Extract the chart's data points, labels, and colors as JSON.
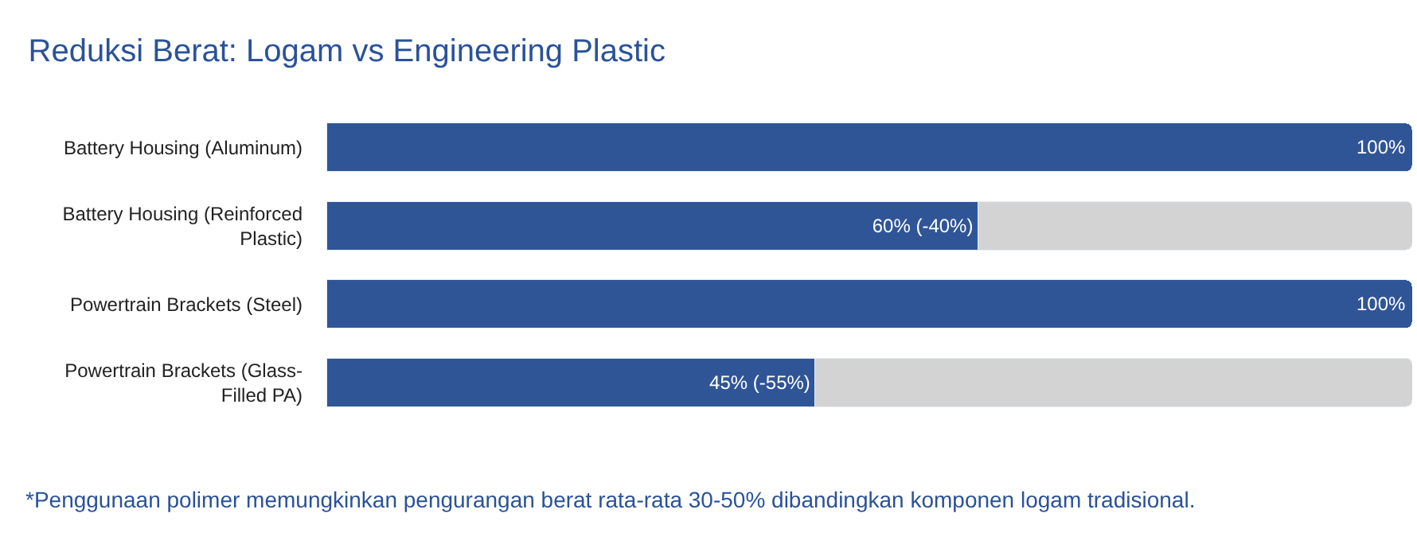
{
  "chart_data": {
    "type": "bar",
    "orientation": "horizontal",
    "stacked": true,
    "title": "Reduksi Berat: Logam vs Engineering Plastic",
    "categories": [
      "Battery Housing (Aluminum)",
      "Battery Housing (Reinforced Plastic)",
      "Powertrain Brackets (Steel)",
      "Powertrain Brackets (Glass-Filled PA)"
    ],
    "series": [
      {
        "color": "#2f5597",
        "values": [
          100,
          60,
          100,
          45
        ],
        "value_labels": [
          "100%",
          "60% (-40%)",
          "100%",
          "45% (-55%)"
        ]
      },
      {
        "color": "#d3d3d3",
        "values": [
          null,
          40,
          null,
          55
        ]
      }
    ],
    "xlim": [
      0,
      100
    ],
    "tick_labels": "y",
    "annotations": [
      "*Penggunaan polimer memungkinkan pengurangan berat rata-rata 30-50% dibandingkan komponen logam tradisional."
    ]
  }
}
